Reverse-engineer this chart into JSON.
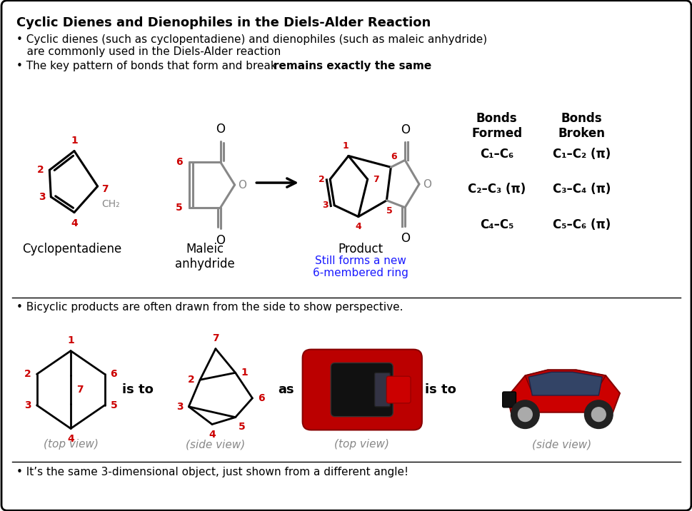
{
  "title": "Cyclic Dienes and Dienophiles in the Diels-Alder Reaction",
  "bullet1a": "• Cyclic dienes (such as cyclopentadiene) and dienophiles (such as maleic anhydride)",
  "bullet1b": "   are commonly used in the Diels-Alder reaction",
  "bullet2a": "• The key pattern of bonds that form and break ",
  "bullet2b": "remains exactly the same",
  "bullet3": "• Bicyclic products are often drawn from the side to show perspective.",
  "bullet4": "• It’s the same 3-dimensional object, just shown from a different angle!",
  "bonds_formed_header": "Bonds\nFormed",
  "bonds_broken_header": "Bonds\nBroken",
  "bonds_formed": [
    "C₁–C₆",
    "C₂–C₃ (π)",
    "C₄–C₅"
  ],
  "bonds_broken": [
    "C₁–C₂ (π)",
    "C₃–C₄ (π)",
    "C₅–C₆ (π)"
  ],
  "product_label": "Product",
  "product_sublabel": "Still forms a new\n6-membered ring",
  "label_cyclopentadiene": "Cyclopentadiene",
  "label_maleic": "Maleic\nanhydride",
  "label_is_to": "is to",
  "label_as": "as",
  "label_is_to2": "is to",
  "label_top_view1": "(top view)",
  "label_side_view1": "(side view)",
  "label_top_view2": "(top view)",
  "label_side_view2": "(side view)",
  "red_color": "#CC0000",
  "blue_color": "#1a1aff",
  "gray_color": "#888888",
  "black_color": "#000000",
  "background_color": "#FFFFFF"
}
